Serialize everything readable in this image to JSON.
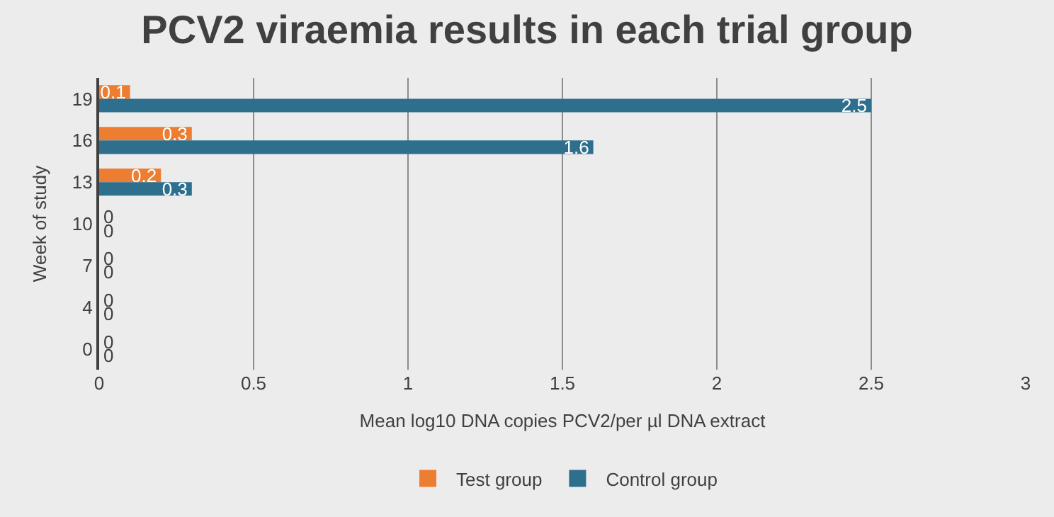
{
  "chart_data": {
    "type": "bar",
    "orientation": "horizontal",
    "title": "PCV2 viraemia results in each trial group",
    "xlabel": "Mean log10 DNA copies PCV2/per µl DNA extract",
    "ylabel": "Week of study",
    "categories": [
      "19",
      "16",
      "13",
      "10",
      "7",
      "4",
      "0"
    ],
    "series": [
      {
        "name": "Test group",
        "color": "#ed7d31",
        "values": [
          0.1,
          0.3,
          0.2,
          0,
          0,
          0,
          0
        ]
      },
      {
        "name": "Control group",
        "color": "#2e6f8e",
        "values": [
          2.5,
          1.6,
          0.3,
          0,
          0,
          0,
          0
        ]
      }
    ],
    "xlim": [
      0,
      3
    ],
    "xticks": [
      0,
      0.5,
      1,
      1.5,
      2,
      2.5,
      3
    ],
    "grid": "x",
    "legend": "bottom",
    "data_labels": true
  }
}
